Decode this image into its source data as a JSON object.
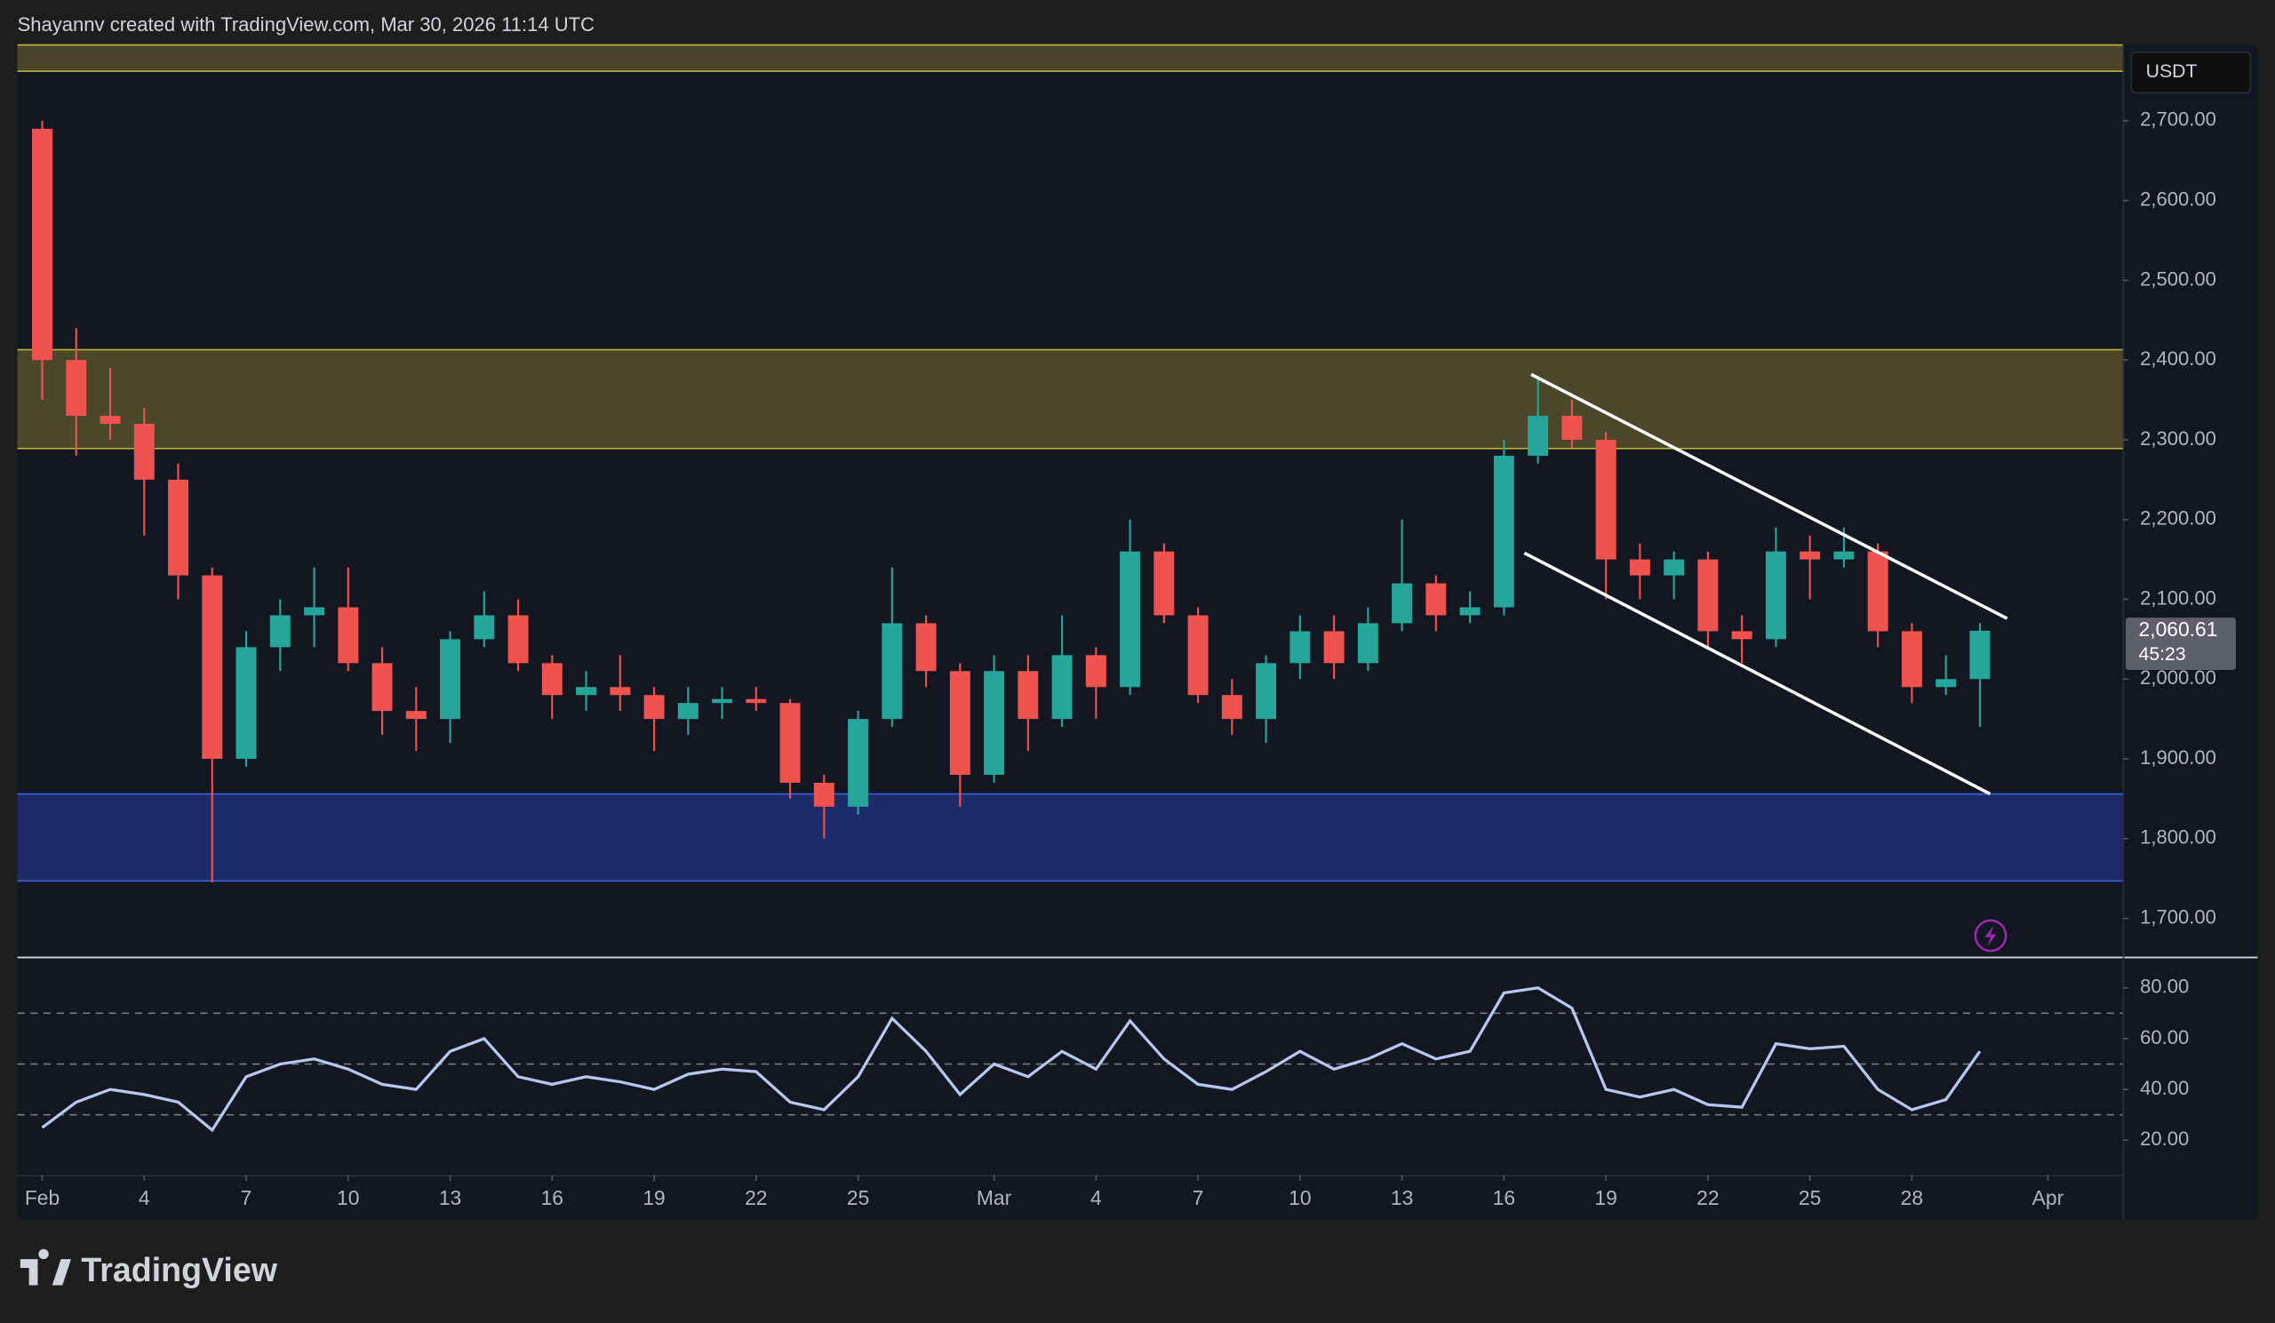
{
  "header": {
    "attribution": "Shayannv created with TradingView.com, Mar 30, 2026 11:14 UTC"
  },
  "footer": {
    "logo": "TradingView"
  },
  "chart_data": [
    {
      "type": "candlestick",
      "currency": "USDT",
      "x": [
        0,
        1,
        2,
        3,
        4,
        5,
        6,
        7,
        8,
        9,
        10,
        11,
        12,
        13,
        14,
        15,
        16,
        17,
        18,
        19,
        20,
        21,
        22,
        23,
        24,
        25,
        26,
        27,
        28,
        29,
        30,
        31,
        32,
        33,
        34,
        35,
        36,
        37,
        38,
        39,
        40,
        41,
        42,
        43,
        44,
        45,
        46,
        47,
        48,
        49,
        50,
        51,
        52,
        53,
        54,
        55,
        56,
        57
      ],
      "open": [
        2690,
        2400,
        2330,
        2320,
        2250,
        2130,
        1900,
        2040,
        2080,
        2090,
        2020,
        1960,
        1950,
        2050,
        2080,
        2020,
        1980,
        1990,
        1980,
        1950,
        1970,
        1975,
        1970,
        1870,
        1840,
        1950,
        2070,
        2010,
        1880,
        2010,
        1950,
        2030,
        1990,
        2160,
        2080,
        1980,
        1950,
        2020,
        2060,
        2020,
        2070,
        2120,
        2080,
        2090,
        2280,
        2330,
        2300,
        2150,
        2130,
        2150,
        2060,
        2050,
        2160,
        2150,
        2160,
        2060,
        1990,
        2000
      ],
      "high": [
        2700,
        2440,
        2390,
        2340,
        2270,
        2140,
        2060,
        2100,
        2140,
        2140,
        2040,
        1990,
        2060,
        2110,
        2100,
        2030,
        2010,
        2030,
        1990,
        1990,
        1990,
        1990,
        1975,
        1880,
        1960,
        2140,
        2080,
        2020,
        2030,
        2030,
        2080,
        2040,
        2200,
        2170,
        2090,
        2000,
        2030,
        2080,
        2080,
        2090,
        2200,
        2130,
        2110,
        2300,
        2380,
        2350,
        2310,
        2170,
        2160,
        2160,
        2080,
        2190,
        2180,
        2190,
        2170,
        2070,
        2030,
        2070
      ],
      "low": [
        2350,
        2280,
        2300,
        2180,
        2100,
        1745,
        1890,
        2010,
        2040,
        2010,
        1930,
        1910,
        1920,
        2040,
        2010,
        1950,
        1960,
        1960,
        1910,
        1930,
        1950,
        1960,
        1850,
        1800,
        1830,
        1940,
        1990,
        1840,
        1870,
        1910,
        1940,
        1950,
        1980,
        2070,
        1970,
        1930,
        1920,
        2000,
        2000,
        2010,
        2060,
        2060,
        2070,
        2080,
        2270,
        2290,
        2100,
        2100,
        2100,
        2040,
        2020,
        2040,
        2100,
        2140,
        2040,
        1970,
        1980,
        1940
      ],
      "close": [
        2400,
        2330,
        2320,
        2250,
        2130,
        1900,
        2040,
        2080,
        2090,
        2020,
        1960,
        1950,
        2050,
        2080,
        2020,
        1980,
        1990,
        1980,
        1950,
        1970,
        1975,
        1970,
        1870,
        1840,
        1950,
        2070,
        2010,
        1880,
        2010,
        1950,
        2030,
        1990,
        2160,
        2080,
        1980,
        1950,
        2020,
        2060,
        2020,
        2070,
        2120,
        2080,
        2090,
        2280,
        2330,
        2300,
        2150,
        2130,
        2150,
        2060,
        2050,
        2160,
        2150,
        2160,
        2060,
        1990,
        2000,
        2060.61
      ],
      "up_color": "#26a69a",
      "down_color": "#ef5350",
      "xlim": [
        -0.73,
        61.2
      ],
      "ylim": [
        1651,
        2795
      ],
      "yticks": [
        {
          "value": 1700,
          "label": "1,700.00"
        },
        {
          "value": 1800,
          "label": "1,800.00"
        },
        {
          "value": 1900,
          "label": "1,900.00"
        },
        {
          "value": 2000,
          "label": "2,000.00"
        },
        {
          "value": 2100,
          "label": "2,100.00"
        },
        {
          "value": 2200,
          "label": "2,200.00"
        },
        {
          "value": 2300,
          "label": "2,300.00"
        },
        {
          "value": 2400,
          "label": "2,400.00"
        },
        {
          "value": 2500,
          "label": "2,500.00"
        },
        {
          "value": 2600,
          "label": "2,600.00"
        },
        {
          "value": 2700,
          "label": "2,700.00"
        }
      ],
      "last_price": {
        "value": 2060.61,
        "label": "2,060.61"
      },
      "countdown": "45:23",
      "zones": [
        {
          "from": 2762,
          "to": 2795,
          "color": "#48452a",
          "border": "#b6b33c"
        },
        {
          "from": 2289,
          "to": 2413,
          "color": "#4a472b",
          "border": "#b6b33c"
        },
        {
          "from": 1747,
          "to": 1856,
          "color": "#1d2b6b",
          "border": "#3d5fe0"
        }
      ],
      "trendlines": [
        {
          "x1": 43.8,
          "y1": 2382,
          "x2": 57.8,
          "y2": 2076,
          "color": "#ffffff"
        },
        {
          "x1": 43.6,
          "y1": 2158,
          "x2": 57.3,
          "y2": 1856,
          "color": "#ffffff"
        }
      ]
    },
    {
      "type": "line",
      "x": [
        0,
        1,
        2,
        3,
        4,
        5,
        6,
        7,
        8,
        9,
        10,
        11,
        12,
        13,
        14,
        15,
        16,
        17,
        18,
        19,
        20,
        21,
        22,
        23,
        24,
        25,
        26,
        27,
        28,
        29,
        30,
        31,
        32,
        33,
        34,
        35,
        36,
        37,
        38,
        39,
        40,
        41,
        42,
        43,
        44,
        45,
        46,
        47,
        48,
        49,
        50,
        51,
        52,
        53,
        54,
        55,
        56,
        57
      ],
      "values": [
        25,
        35,
        40,
        38,
        35,
        24,
        45,
        50,
        52,
        48,
        42,
        40,
        55,
        60,
        45,
        42,
        45,
        43,
        40,
        46,
        48,
        47,
        35,
        32,
        45,
        68,
        55,
        38,
        50,
        45,
        55,
        48,
        67,
        52,
        42,
        40,
        47,
        55,
        48,
        52,
        58,
        52,
        55,
        78,
        80,
        72,
        40,
        37,
        40,
        34,
        33,
        58,
        56,
        57,
        40,
        32,
        36,
        55
      ],
      "color": "#b8c7ee",
      "xlim": [
        -0.73,
        61.2
      ],
      "ylim": [
        6.3,
        91.4
      ],
      "yticks": [
        {
          "value": 20,
          "label": "20.00"
        },
        {
          "value": 40,
          "label": "40.00"
        },
        {
          "value": 60,
          "label": "60.00"
        },
        {
          "value": 80,
          "label": "80.00"
        }
      ],
      "levels": [
        70,
        50,
        30
      ],
      "xticks": [
        {
          "value": 0,
          "label": "Feb"
        },
        {
          "value": 3,
          "label": "4"
        },
        {
          "value": 6,
          "label": "7"
        },
        {
          "value": 9,
          "label": "10"
        },
        {
          "value": 12,
          "label": "13"
        },
        {
          "value": 15,
          "label": "16"
        },
        {
          "value": 18,
          "label": "19"
        },
        {
          "value": 21,
          "label": "22"
        },
        {
          "value": 24,
          "label": "25"
        },
        {
          "value": 28,
          "label": "Mar"
        },
        {
          "value": 31,
          "label": "4"
        },
        {
          "value": 34,
          "label": "7"
        },
        {
          "value": 37,
          "label": "10"
        },
        {
          "value": 40,
          "label": "13"
        },
        {
          "value": 43,
          "label": "16"
        },
        {
          "value": 46,
          "label": "19"
        },
        {
          "value": 49,
          "label": "22"
        },
        {
          "value": 52,
          "label": "25"
        },
        {
          "value": 55,
          "label": "28"
        },
        {
          "value": 59,
          "label": "Apr"
        }
      ]
    }
  ]
}
